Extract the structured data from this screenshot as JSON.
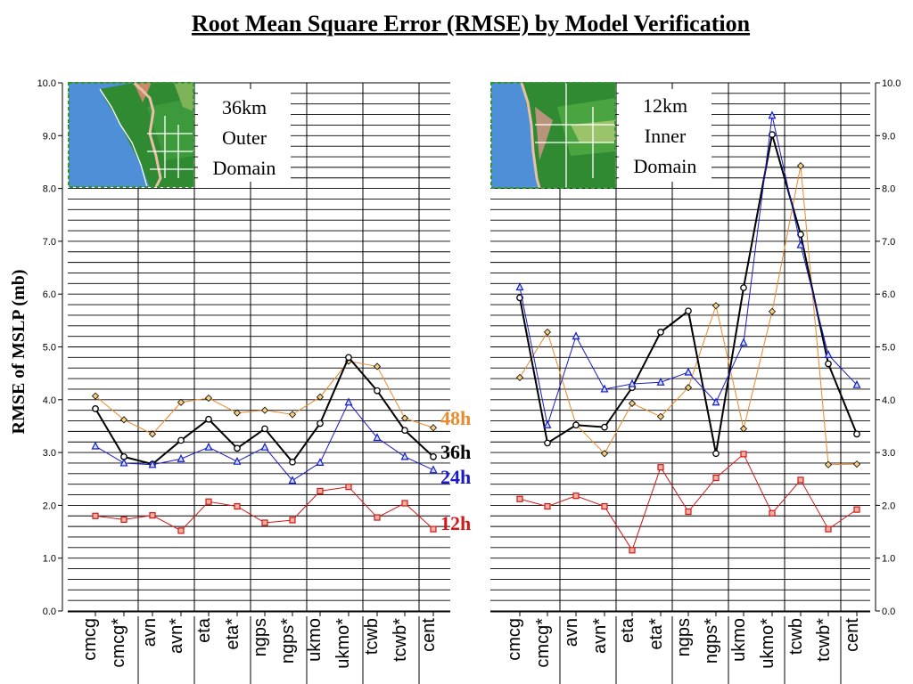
{
  "title": "Root Mean Square Error (RMSE) by Model Verification",
  "ylabel": "RMSE of MSLP (mb)",
  "colors": {
    "48h": "#e8892a",
    "36h": "#000000",
    "24h": "#1a1ac8",
    "12h": "#d01818"
  },
  "chart_data": [
    {
      "type": "line",
      "panel": "outer",
      "domain_label": [
        "36km",
        "Outer",
        "Domain"
      ],
      "categories": [
        "cmcg",
        "cmcg*",
        "avn",
        "avn*",
        "eta",
        "eta*",
        "ngps",
        "ngps*",
        "ukmo",
        "ukmo*",
        "tcwb",
        "tcwb*",
        "cent"
      ],
      "ylim": [
        0,
        10
      ],
      "yticks": [
        "0.0",
        "1.0",
        "2.0",
        "3.0",
        "4.0",
        "5.0",
        "6.0",
        "7.0",
        "8.0",
        "9.0",
        "10.0"
      ],
      "series": [
        {
          "name": "48h",
          "marker": "diamond",
          "values": [
            4.07,
            3.62,
            3.35,
            3.95,
            4.03,
            3.75,
            3.8,
            3.72,
            4.05,
            4.73,
            4.63,
            3.65,
            3.47
          ]
        },
        {
          "name": "36h",
          "marker": "circle",
          "values": [
            3.83,
            2.92,
            2.78,
            3.23,
            3.63,
            3.08,
            3.45,
            2.82,
            3.55,
            4.8,
            4.17,
            3.42,
            2.92
          ]
        },
        {
          "name": "24h",
          "marker": "triangle",
          "values": [
            3.12,
            2.8,
            2.77,
            2.88,
            3.1,
            2.83,
            3.1,
            2.47,
            2.81,
            3.95,
            3.28,
            2.92,
            2.67
          ]
        },
        {
          "name": "12h",
          "marker": "square",
          "values": [
            1.8,
            1.73,
            1.81,
            1.52,
            2.07,
            1.98,
            1.67,
            1.72,
            2.27,
            2.35,
            1.77,
            2.04,
            1.55
          ]
        }
      ]
    },
    {
      "type": "line",
      "panel": "inner",
      "domain_label": [
        "12km",
        "Inner",
        "Domain"
      ],
      "categories": [
        "cmcg",
        "cmcg*",
        "avn",
        "avn*",
        "eta",
        "eta*",
        "ngps",
        "ngps*",
        "ukmo",
        "ukmo*",
        "tcwb",
        "tcwb*",
        "cent"
      ],
      "ylim": [
        0,
        10
      ],
      "yticks": [
        "0.0",
        "1.0",
        "2.0",
        "3.0",
        "4.0",
        "5.0",
        "6.0",
        "7.0",
        "8.0",
        "9.0",
        "10.0"
      ],
      "series": [
        {
          "name": "48h",
          "marker": "diamond",
          "values": [
            4.42,
            5.28,
            3.53,
            2.98,
            3.93,
            3.68,
            4.23,
            5.78,
            3.45,
            5.67,
            8.43,
            2.77,
            2.78
          ]
        },
        {
          "name": "36h",
          "marker": "circle",
          "values": [
            5.93,
            3.18,
            3.52,
            3.48,
            4.23,
            5.28,
            5.68,
            2.98,
            6.12,
            9.02,
            7.13,
            4.68,
            3.35
          ]
        },
        {
          "name": "24h",
          "marker": "triangle",
          "values": [
            6.13,
            3.52,
            5.2,
            4.2,
            4.3,
            4.33,
            4.52,
            3.95,
            5.08,
            9.38,
            6.93,
            4.85,
            4.28
          ]
        },
        {
          "name": "12h",
          "marker": "square",
          "values": [
            2.12,
            1.98,
            2.18,
            1.98,
            1.15,
            2.72,
            1.88,
            2.52,
            2.97,
            1.85,
            2.48,
            1.55,
            1.92
          ]
        }
      ]
    }
  ]
}
